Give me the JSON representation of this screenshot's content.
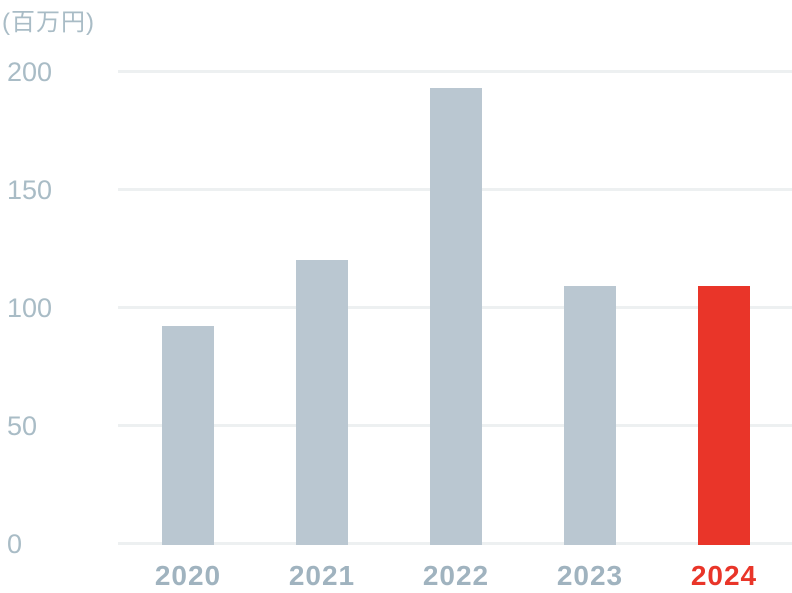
{
  "chart_data": {
    "type": "bar",
    "unit_label": "(百万円)",
    "categories": [
      "2020",
      "2021",
      "2022",
      "2023",
      "2024"
    ],
    "values": [
      92,
      120,
      193,
      109,
      109
    ],
    "ylim": [
      0,
      200
    ],
    "yticks": [
      0,
      50,
      100,
      150,
      200
    ],
    "grid": "horizontal",
    "legend": "none",
    "highlight_index": 4,
    "colors": {
      "bar": "#bac7d1",
      "highlight": "#e93529",
      "axis_tick_text": "#a9bcc6",
      "category_label": "#a0b3bf",
      "highlight_label": "#e93529",
      "gridline": "#edf0f1",
      "unit_label": "#a9bcc6"
    }
  }
}
